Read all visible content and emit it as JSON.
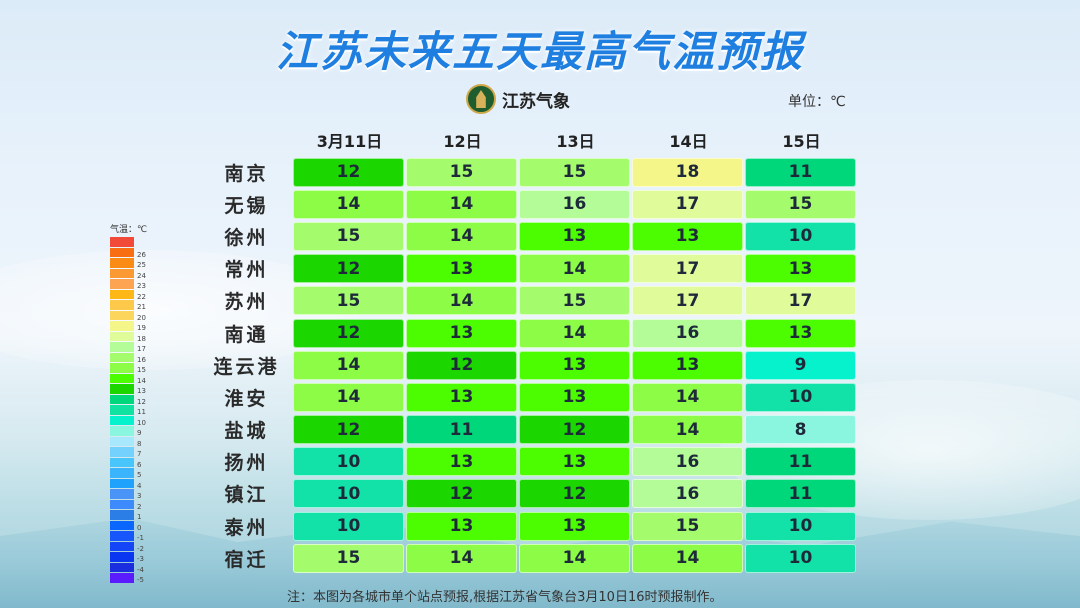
{
  "title": "江苏未来五天最高气温预报",
  "logo": {
    "text": "江苏气象",
    "icon": "jiangsu-meteorology-emblem"
  },
  "unit": "单位：℃",
  "columns": [
    "3月11日",
    "12日",
    "13日",
    "14日",
    "15日"
  ],
  "cities": [
    "南京",
    "无锡",
    "徐州",
    "常州",
    "苏州",
    "南通",
    "连云港",
    "淮安",
    "盐城",
    "扬州",
    "镇江",
    "泰州",
    "宿迁"
  ],
  "legend": {
    "title": "气温：℃",
    "swatches": [
      {
        "label": "",
        "color": "#f24a3a"
      },
      {
        "label": "26",
        "color": "#f86e12"
      },
      {
        "label": "25",
        "color": "#fa8b14"
      },
      {
        "label": "24",
        "color": "#fb9a32"
      },
      {
        "label": "23",
        "color": "#fca452"
      },
      {
        "label": "22",
        "color": "#fdb818"
      },
      {
        "label": "21",
        "color": "#fdc94a"
      },
      {
        "label": "20",
        "color": "#fcd65c"
      },
      {
        "label": "19",
        "color": "#f4f68a"
      },
      {
        "label": "18",
        "color": "#e0fb9a"
      },
      {
        "label": "17",
        "color": "#b4fc98"
      },
      {
        "label": "16",
        "color": "#a4fc6c"
      },
      {
        "label": "15",
        "color": "#8cfc46"
      },
      {
        "label": "14",
        "color": "#4cfc00"
      },
      {
        "label": "13",
        "color": "#1cd600"
      },
      {
        "label": "12",
        "color": "#00d67a"
      },
      {
        "label": "11",
        "color": "#12e2a0"
      },
      {
        "label": "10",
        "color": "#06f2cc"
      },
      {
        "label": "9",
        "color": "#8af6e0"
      },
      {
        "label": "8",
        "color": "#a8e8fc"
      },
      {
        "label": "7",
        "color": "#74d0fc"
      },
      {
        "label": "6",
        "color": "#48c6fc"
      },
      {
        "label": "5",
        "color": "#3ab4fc"
      },
      {
        "label": "4",
        "color": "#1ea2fc"
      },
      {
        "label": "3",
        "color": "#4a94f8"
      },
      {
        "label": "2",
        "color": "#3c8afc"
      },
      {
        "label": "1",
        "color": "#2a7ee6"
      },
      {
        "label": "0",
        "color": "#0a66fc"
      },
      {
        "label": "-1",
        "color": "#1656fa"
      },
      {
        "label": "-2",
        "color": "#1446f8"
      },
      {
        "label": "-3",
        "color": "#0a36f2"
      },
      {
        "label": "-4",
        "color": "#1a2ee0"
      },
      {
        "label": "-5",
        "color": "#5a1cfc"
      }
    ]
  },
  "note": "注：本图为各城市单个站点预报,根据江苏省气象台3月10日16时预报制作。",
  "chart_data": {
    "type": "heatmap",
    "title": "江苏未来五天最高气温预报",
    "unit": "℃",
    "x": [
      "3月11日",
      "12日",
      "13日",
      "14日",
      "15日"
    ],
    "y": [
      "南京",
      "无锡",
      "徐州",
      "常州",
      "苏州",
      "南通",
      "连云港",
      "淮安",
      "盐城",
      "扬州",
      "镇江",
      "泰州",
      "宿迁"
    ],
    "values": [
      [
        12,
        15,
        15,
        18,
        11
      ],
      [
        14,
        14,
        16,
        17,
        15
      ],
      [
        15,
        14,
        13,
        13,
        10
      ],
      [
        12,
        13,
        14,
        17,
        13
      ],
      [
        15,
        14,
        15,
        17,
        17
      ],
      [
        12,
        13,
        14,
        16,
        13
      ],
      [
        14,
        12,
        13,
        13,
        9
      ],
      [
        14,
        13,
        13,
        14,
        10
      ],
      [
        12,
        11,
        12,
        14,
        8
      ],
      [
        10,
        13,
        13,
        16,
        11
      ],
      [
        10,
        12,
        12,
        16,
        11
      ],
      [
        10,
        13,
        13,
        15,
        10
      ],
      [
        15,
        14,
        14,
        14,
        10
      ]
    ],
    "colorscale_range": [
      -5,
      26
    ],
    "legend_position": "left"
  },
  "value_colors": {
    "8": "#8af6e0",
    "9": "#06f2cc",
    "10": "#12e2a8",
    "11": "#00d67a",
    "12": "#1cd600",
    "13": "#4cfc00",
    "14": "#8cfc46",
    "15": "#a4fc6c",
    "16": "#b4fc98",
    "17": "#e0fb9a",
    "18": "#f4f68a"
  }
}
